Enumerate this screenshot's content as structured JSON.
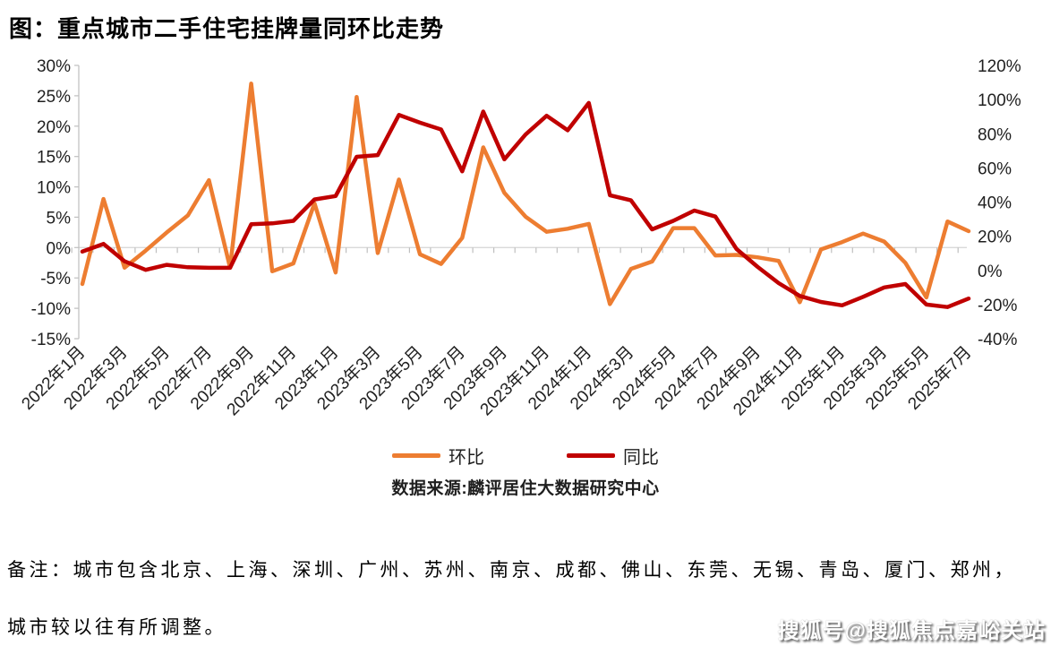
{
  "title": "图：重点城市二手住宅挂牌量同环比走势",
  "chart_data": {
    "type": "line",
    "title": "图：重点城市二手住宅挂牌量同环比走势",
    "x": [
      "2022年1月",
      "2022年2月",
      "2022年3月",
      "2022年4月",
      "2022年5月",
      "2022年6月",
      "2022年7月",
      "2022年8月",
      "2022年9月",
      "2022年10月",
      "2022年11月",
      "2022年12月",
      "2023年1月",
      "2023年2月",
      "2023年3月",
      "2023年4月",
      "2023年5月",
      "2023年6月",
      "2023年7月",
      "2023年8月",
      "2023年9月",
      "2023年10月",
      "2023年11月",
      "2023年12月",
      "2024年1月",
      "2024年2月",
      "2024年3月",
      "2024年4月",
      "2024年5月",
      "2024年6月",
      "2024年7月",
      "2024年8月",
      "2024年9月",
      "2024年10月",
      "2024年11月",
      "2024年12月",
      "2025年1月",
      "2025年2月",
      "2025年3月",
      "2025年4月",
      "2025年5月",
      "2025年6月",
      "2025年7月"
    ],
    "x_tick_labels_shown_every": 2,
    "series": [
      {
        "name": "环比",
        "axis": "left",
        "color": "#ED7D31",
        "values": [
          -6,
          8,
          -3.3,
          -0.5,
          2.5,
          5.3,
          11.1,
          -3.3,
          27,
          -3.9,
          -2.6,
          7.3,
          -4.1,
          24.8,
          -0.9,
          11.2,
          -1.1,
          -2.7,
          1.6,
          16.5,
          9,
          5.1,
          2.6,
          3.1,
          3.9,
          -9.3,
          -3.5,
          -2.3,
          3.2,
          3.2,
          -1.3,
          -1.2,
          -1.6,
          -2.2,
          -9,
          -0.3,
          0.9,
          2.3,
          1,
          -2.5,
          -8.2,
          4.3,
          2.7
        ]
      },
      {
        "name": "同比",
        "axis": "right",
        "color": "#C00000",
        "values": [
          11,
          15.5,
          5.3,
          0.3,
          3.2,
          1.8,
          1.5,
          1.5,
          27,
          27.5,
          29,
          41.5,
          43.5,
          66.5,
          67.5,
          91,
          86.5,
          82.5,
          58,
          93,
          65,
          79.5,
          90.5,
          82,
          98,
          44,
          41,
          24,
          29,
          35,
          31.5,
          12.5,
          2,
          -7.5,
          -15,
          -18.5,
          -20.5,
          -15.5,
          -10,
          -8,
          -20,
          -21.5,
          -16.5
        ]
      }
    ],
    "left_axis": {
      "min": -15,
      "max": 30,
      "tick_values": [
        30,
        25,
        20,
        15,
        10,
        5,
        0,
        -5,
        -10,
        -15
      ],
      "tick_labels": [
        "30%",
        "25%",
        "20%",
        "15%",
        "10%",
        "5%",
        "0%",
        "-5%",
        "-10%",
        "-15%"
      ]
    },
    "right_axis": {
      "min": -40,
      "max": 120,
      "tick_values": [
        120,
        100,
        80,
        60,
        40,
        20,
        0,
        -20,
        -40
      ],
      "tick_labels": [
        "120%",
        "100%",
        "80%",
        "60%",
        "40%",
        "20%",
        "0%",
        "-20%",
        "-40%"
      ]
    },
    "grid": "single horizontal zero line",
    "legend_position": "bottom"
  },
  "legend": {
    "items": [
      {
        "label": "环比"
      },
      {
        "label": "同比"
      }
    ]
  },
  "source": "数据来源:麟评居住大数据研究中心",
  "notes": {
    "line1": "备注：城市包含北京、上海、深圳、广州、苏州、南京、成都、佛山、东莞、无锡、青岛、厦门、郑州，",
    "line2": "城市较以往有所调整。"
  },
  "watermark": "搜狐号@搜狐焦点嘉峪关站"
}
